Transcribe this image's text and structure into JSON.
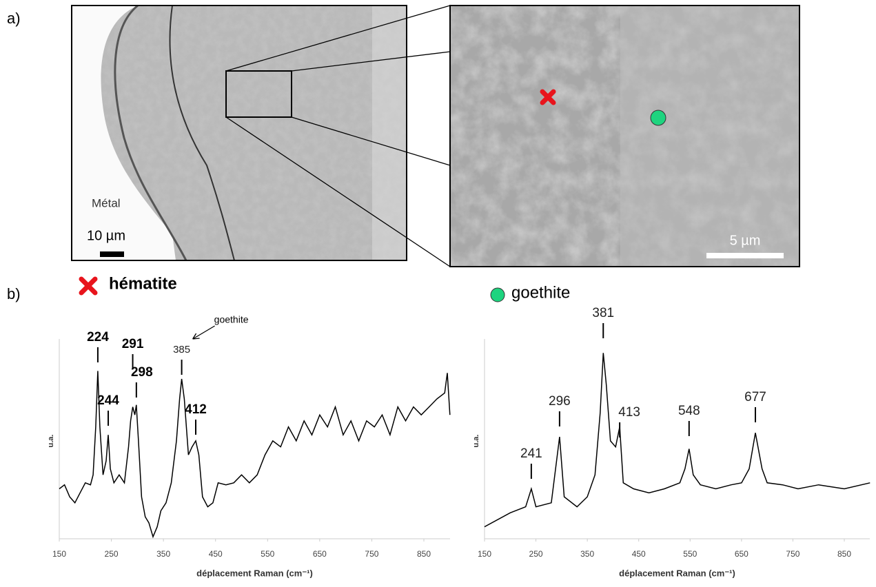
{
  "figure": {
    "panel_a": "a)",
    "panel_b": "b)",
    "metal_label": "Métal",
    "scale_left": "10 µm",
    "scale_right": "5 µm"
  },
  "chart_data": [
    {
      "type": "line",
      "title": "hématite",
      "marker": "cross",
      "marker_color": "#e8141c",
      "xlabel": "déplacement Raman (cm⁻¹)",
      "ylabel": "u.a.",
      "xlim": [
        150,
        900
      ],
      "xticks": [
        150,
        250,
        350,
        450,
        550,
        650,
        750,
        850
      ],
      "ylim": [
        0,
        100
      ],
      "x": [
        150,
        160,
        170,
        180,
        190,
        200,
        210,
        215,
        220,
        224,
        228,
        234,
        240,
        244,
        248,
        255,
        265,
        275,
        283,
        287,
        291,
        295,
        298,
        302,
        308,
        315,
        322,
        330,
        338,
        345,
        355,
        365,
        375,
        381,
        385,
        390,
        398,
        405,
        412,
        418,
        425,
        435,
        445,
        455,
        470,
        485,
        500,
        515,
        530,
        545,
        560,
        575,
        590,
        605,
        620,
        635,
        650,
        665,
        680,
        695,
        710,
        725,
        740,
        755,
        770,
        785,
        800,
        815,
        830,
        845,
        860,
        875,
        890,
        895,
        900
      ],
      "series": [
        {
          "name": "hématite",
          "color": "#000000",
          "values": [
            25,
            27,
            21,
            18,
            23,
            28,
            27,
            32,
            56,
            84,
            56,
            32,
            39,
            52,
            35,
            28,
            32,
            28,
            46,
            59,
            66,
            62,
            67,
            49,
            21,
            11,
            8,
            1,
            6,
            14,
            18,
            28,
            49,
            70,
            80,
            70,
            42,
            46,
            49,
            42,
            21,
            16,
            18,
            28,
            27,
            28,
            32,
            28,
            32,
            42,
            49,
            46,
            56,
            49,
            59,
            52,
            62,
            56,
            66,
            52,
            59,
            49,
            59,
            56,
            62,
            52,
            66,
            59,
            66,
            62,
            66,
            70,
            73,
            83,
            62
          ]
        }
      ],
      "peaks": [
        224,
        244,
        291,
        298,
        385,
        412
      ],
      "peak_labels": [
        "224",
        "244",
        "291",
        "298",
        "385",
        "412"
      ],
      "peak_bold": [
        true,
        true,
        true,
        true,
        false,
        true
      ],
      "annotation": "goethite"
    },
    {
      "type": "line",
      "title": "goethite",
      "marker": "circle",
      "marker_color": "#1ed47f",
      "xlabel": "déplacement Raman (cm⁻¹)",
      "ylabel": "u.a.",
      "xlim": [
        150,
        900
      ],
      "xticks": [
        150,
        250,
        350,
        450,
        550,
        650,
        750,
        850
      ],
      "ylim": [
        0,
        100
      ],
      "x": [
        150,
        200,
        230,
        241,
        250,
        280,
        296,
        305,
        330,
        350,
        365,
        375,
        381,
        387,
        395,
        405,
        413,
        420,
        440,
        470,
        500,
        530,
        540,
        548,
        556,
        570,
        600,
        630,
        650,
        665,
        677,
        690,
        700,
        730,
        760,
        800,
        850,
        900
      ],
      "series": [
        {
          "name": "goethite",
          "color": "#000000",
          "values": [
            6,
            13,
            16,
            25,
            16,
            18,
            51,
            21,
            16,
            21,
            32,
            63,
            93,
            77,
            49,
            46,
            56,
            28,
            25,
            23,
            25,
            28,
            35,
            45,
            32,
            27,
            25,
            27,
            28,
            35,
            53,
            35,
            28,
            27,
            25,
            27,
            25,
            28
          ]
        }
      ],
      "peaks": [
        241,
        296,
        381,
        413,
        548,
        677
      ],
      "peak_labels": [
        "241",
        "296",
        "381",
        "413",
        "548",
        "677"
      ],
      "peak_bold": [
        false,
        false,
        false,
        false,
        false,
        false
      ]
    }
  ]
}
